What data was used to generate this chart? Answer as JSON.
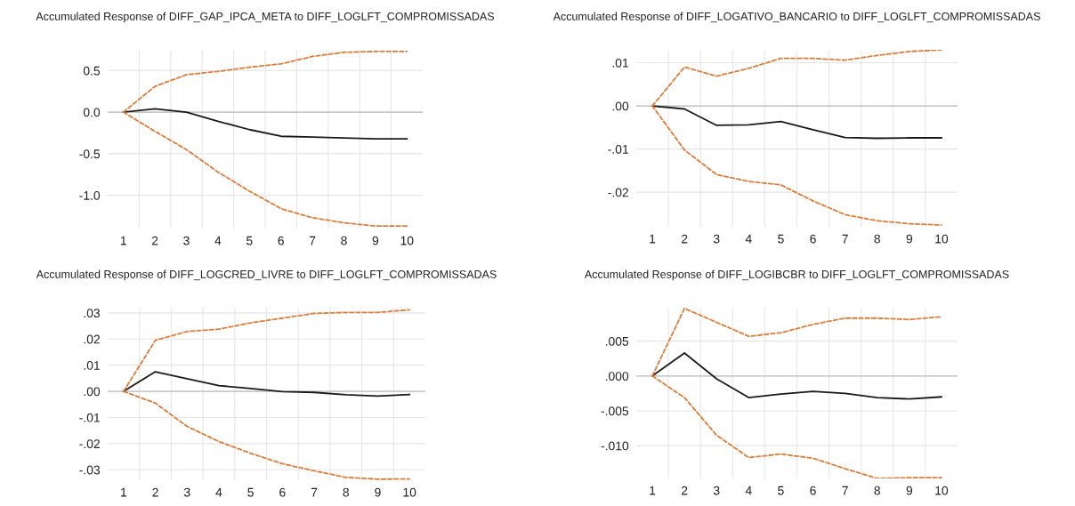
{
  "chart_data": [
    {
      "type": "line",
      "title": "Accumulated Response of DIFF_GAP_IPCA_META to DIFF_LOGLFT_COMPROMISSADAS",
      "categories": [
        "1",
        "2",
        "3",
        "4",
        "5",
        "6",
        "7",
        "8",
        "9",
        "10"
      ],
      "ylim": [
        -1.4,
        0.75
      ],
      "yticks": [
        {
          "value": -1.0,
          "label": "-1.0"
        },
        {
          "value": -0.5,
          "label": "-0.5"
        },
        {
          "value": 0,
          "label": "0.0"
        },
        {
          "value": 0.5,
          "label": "0.5"
        }
      ],
      "grid": true,
      "line_style": "solid",
      "ref_lines": [
        {
          "axis": "y",
          "value": 0,
          "color": "#bdbdbd"
        }
      ],
      "series": [
        {
          "color": "#1a1a1a",
          "values": [
            0,
            0.04,
            0.0,
            -0.11,
            -0.21,
            -0.29,
            -0.3,
            -0.31,
            -0.32,
            -0.32
          ]
        },
        {
          "color": "#e07b39",
          "line_style": "dashed",
          "values": [
            0,
            0.31,
            0.45,
            0.49,
            0.54,
            0.58,
            0.67,
            0.72,
            0.73,
            0.73
          ]
        },
        {
          "color": "#e07b39",
          "line_style": "dashed",
          "values": [
            0,
            -0.23,
            -0.45,
            -0.72,
            -0.95,
            -1.16,
            -1.27,
            -1.33,
            -1.37,
            -1.37
          ]
        }
      ]
    },
    {
      "type": "line",
      "title": "Accumulated Response of DIFF_LOGATIVO_BANCARIO to DIFF_LOGLFT_COMPROMISSADAS",
      "categories": [
        "1",
        "2",
        "3",
        "4",
        "5",
        "6",
        "7",
        "8",
        "9",
        "10"
      ],
      "ylim": [
        -0.028,
        0.013
      ],
      "yticks": [
        {
          "value": -0.02,
          "label": "-.02"
        },
        {
          "value": -0.01,
          "label": "-.01"
        },
        {
          "value": 0,
          "label": ".00"
        },
        {
          "value": 0.01,
          "label": ".01"
        }
      ],
      "grid": true,
      "line_style": "solid",
      "ref_lines": [
        {
          "axis": "y",
          "value": 0,
          "color": "#bdbdbd"
        }
      ],
      "series": [
        {
          "color": "#1a1a1a",
          "values": [
            0,
            -0.0007,
            -0.0045,
            -0.0044,
            -0.0036,
            -0.0055,
            -0.0073,
            -0.0075,
            -0.0074,
            -0.0074
          ]
        },
        {
          "color": "#e07b39",
          "line_style": "dashed",
          "values": [
            0,
            0.009,
            0.0069,
            0.0087,
            0.011,
            0.011,
            0.0106,
            0.0117,
            0.0126,
            0.013
          ]
        },
        {
          "color": "#e07b39",
          "line_style": "dashed",
          "values": [
            0,
            -0.0102,
            -0.0159,
            -0.0175,
            -0.0183,
            -0.022,
            -0.0252,
            -0.0266,
            -0.0273,
            -0.0276
          ]
        }
      ]
    },
    {
      "type": "line",
      "title": "Accumulated Response of DIFF_LOGCRED_LIVRE to DIFF_LOGLFT_COMPROMISSADAS",
      "categories": [
        "1",
        "2",
        "3",
        "4",
        "5",
        "6",
        "7",
        "8",
        "9",
        "10"
      ],
      "ylim": [
        -0.034,
        0.032
      ],
      "yticks": [
        {
          "value": -0.03,
          "label": "-.03"
        },
        {
          "value": -0.02,
          "label": "-.02"
        },
        {
          "value": -0.01,
          "label": "-.01"
        },
        {
          "value": 0,
          "label": ".00"
        },
        {
          "value": 0.01,
          "label": ".01"
        },
        {
          "value": 0.02,
          "label": ".02"
        },
        {
          "value": 0.03,
          "label": ".03"
        }
      ],
      "grid": true,
      "line_style": "solid",
      "ref_lines": [
        {
          "axis": "y",
          "value": 0,
          "color": "#bdbdbd"
        }
      ],
      "series": [
        {
          "color": "#1a1a1a",
          "values": [
            0,
            0.0075,
            0.0048,
            0.0022,
            0.0011,
            -0.0001,
            -0.0004,
            -0.0013,
            -0.0018,
            -0.0012
          ]
        },
        {
          "color": "#e07b39",
          "line_style": "dashed",
          "values": [
            0,
            0.0195,
            0.0229,
            0.0238,
            0.0262,
            0.028,
            0.0298,
            0.0302,
            0.0302,
            0.0312
          ]
        },
        {
          "color": "#e07b39",
          "line_style": "dashed",
          "values": [
            0,
            -0.0045,
            -0.0134,
            -0.0192,
            -0.0237,
            -0.0277,
            -0.0304,
            -0.0329,
            -0.0336,
            -0.0335
          ]
        }
      ]
    },
    {
      "type": "line",
      "title": "Accumulated Response of DIFF_LOGIBCBR to DIFF_LOGLFT_COMPROMISSADAS",
      "categories": [
        "1",
        "2",
        "3",
        "4",
        "5",
        "6",
        "7",
        "8",
        "9",
        "10"
      ],
      "ylim": [
        -0.0147,
        0.0098
      ],
      "yticks": [
        {
          "value": -0.01,
          "label": "-.010"
        },
        {
          "value": -0.005,
          "label": "-.005"
        },
        {
          "value": 0,
          "label": ".000"
        },
        {
          "value": 0.005,
          "label": ".005"
        }
      ],
      "grid": true,
      "line_style": "solid",
      "ref_lines": [
        {
          "axis": "y",
          "value": 0,
          "color": "#bdbdbd"
        }
      ],
      "series": [
        {
          "color": "#1a1a1a",
          "values": [
            0,
            0.0033,
            -0.0004,
            -0.0031,
            -0.0026,
            -0.0022,
            -0.0025,
            -0.0031,
            -0.0033,
            -0.003
          ]
        },
        {
          "color": "#e07b39",
          "line_style": "dashed",
          "values": [
            0,
            0.0097,
            0.0077,
            0.0057,
            0.0062,
            0.0074,
            0.0083,
            0.0083,
            0.0081,
            0.0085
          ]
        },
        {
          "color": "#e07b39",
          "line_style": "dashed",
          "values": [
            0,
            -0.0031,
            -0.0085,
            -0.0117,
            -0.0112,
            -0.0118,
            -0.0133,
            -0.0147,
            -0.0146,
            -0.0146
          ]
        }
      ]
    }
  ]
}
